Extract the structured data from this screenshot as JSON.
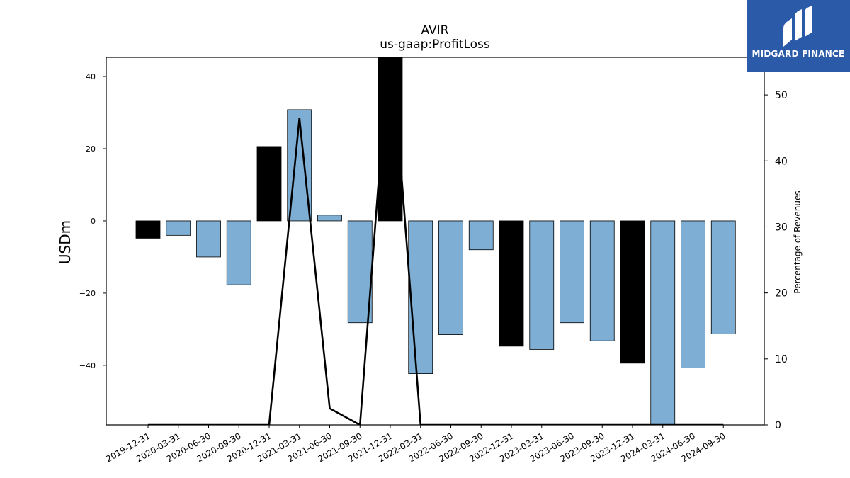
{
  "chart_data": {
    "type": "bar",
    "title": "AVIR",
    "subtitle": "us-gaap:ProfitLoss",
    "ylabel": "USDm",
    "y2label": "Percentage of Revenues",
    "categories": [
      "2019-12-31",
      "2020-03-31",
      "2020-06-30",
      "2020-09-30",
      "2020-12-31",
      "2021-03-31",
      "2021-06-30",
      "2021-09-30",
      "2021-12-31",
      "2022-03-31",
      "2022-06-30",
      "2022-09-30",
      "2022-12-31",
      "2023-03-31",
      "2023-06-30",
      "2023-09-30",
      "2023-12-31",
      "2024-03-31",
      "2024-06-30",
      "2024-09-30"
    ],
    "series": [
      {
        "values": [
          -4.8,
          -4.0,
          -10.0,
          -17.7,
          20.6,
          30.8,
          1.6,
          -28.2,
          46.0,
          -42.3,
          -31.5,
          -8.0,
          -34.7,
          -35.6,
          -28.2,
          -33.2,
          -39.4,
          -58.0,
          -40.7,
          -31.3
        ],
        "bar_colors": [
          "#000000",
          "#7eaed3",
          "#7eaed3",
          "#7eaed3",
          "#000000",
          "#7eaed3",
          "#7eaed3",
          "#7eaed3",
          "#000000",
          "#7eaed3",
          "#7eaed3",
          "#7eaed3",
          "#000000",
          "#7eaed3",
          "#7eaed3",
          "#7eaed3",
          "#000000",
          "#7eaed3",
          "#7eaed3",
          "#7eaed3"
        ]
      },
      {
        "axis": "right",
        "style": "line",
        "values": [
          0,
          0,
          0,
          0,
          0,
          46.5,
          2.5,
          0,
          60,
          0,
          0,
          0,
          0,
          0,
          0,
          0,
          0,
          0,
          0,
          0
        ]
      }
    ],
    "ylim": [
      -56.5,
      45.3
    ],
    "y2lim": [
      0,
      55.7
    ],
    "yticks": [
      -40,
      -20,
      0,
      20,
      40
    ],
    "y2ticks": [
      0,
      10,
      20,
      30,
      40,
      50
    ],
    "grid": false,
    "colors": {
      "annual": "#000000",
      "quarterly": "#7eaed3",
      "line": "#000000"
    }
  },
  "logo": {
    "text": "MIDGARD FINANCE",
    "color": "#2b5aa8"
  }
}
